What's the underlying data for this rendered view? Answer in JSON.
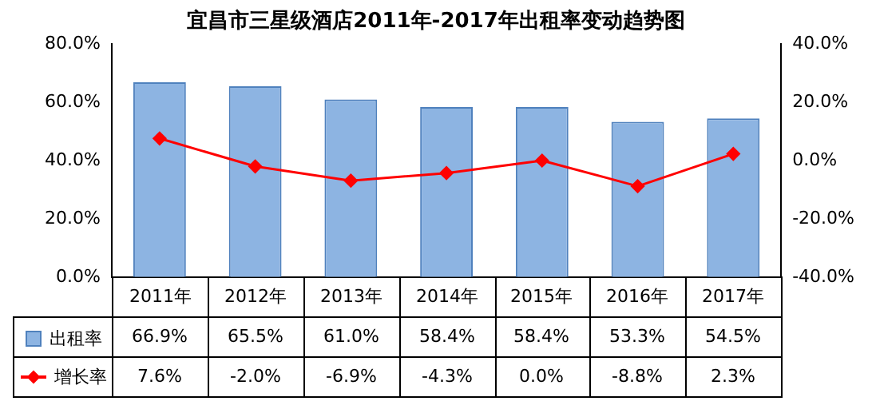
{
  "chart_data": {
    "type": "bar",
    "title": "宜昌市三星级酒店2011年-2017年出租率变动趋势图",
    "categories": [
      "2011年",
      "2012年",
      "2013年",
      "2014年",
      "2015年",
      "2016年",
      "2017年"
    ],
    "series": [
      {
        "name": "出租率",
        "color": "#8db4e2",
        "values": [
          66.9,
          65.5,
          61.0,
          58.4,
          58.4,
          53.3,
          54.5
        ],
        "value_labels": [
          "66.9%",
          "65.5%",
          "61.0%",
          "58.4%",
          "58.4%",
          "53.3%",
          "54.5%"
        ]
      },
      {
        "name": "增长率",
        "type": "line",
        "axis": "y2",
        "color": "#ff0000",
        "values": [
          7.6,
          -2.0,
          -6.9,
          -4.3,
          0.0,
          -8.8,
          2.3
        ],
        "value_labels": [
          "7.6%",
          "-2.0%",
          "-6.9%",
          "-4.3%",
          "0.0%",
          "-8.8%",
          "2.3%"
        ]
      }
    ],
    "ylim": [
      0,
      80
    ],
    "yticks": [
      {
        "value": 0,
        "label": "0.0%"
      },
      {
        "value": 20,
        "label": "20.0%"
      },
      {
        "value": 40,
        "label": "40.0%"
      },
      {
        "value": 60,
        "label": "60.0%"
      },
      {
        "value": 80,
        "label": "80.0%"
      }
    ],
    "y2lim": [
      -40,
      40
    ],
    "y2ticks": [
      {
        "value": -40,
        "label": "-40.0%"
      },
      {
        "value": -20,
        "label": "-20.0%"
      },
      {
        "value": 0,
        "label": "0.0%"
      },
      {
        "value": 20,
        "label": "20.0%"
      },
      {
        "value": 40,
        "label": "40.0%"
      }
    ],
    "legend": "bottom left",
    "marker": "diamond",
    "line_style": "solid",
    "grid": false
  }
}
